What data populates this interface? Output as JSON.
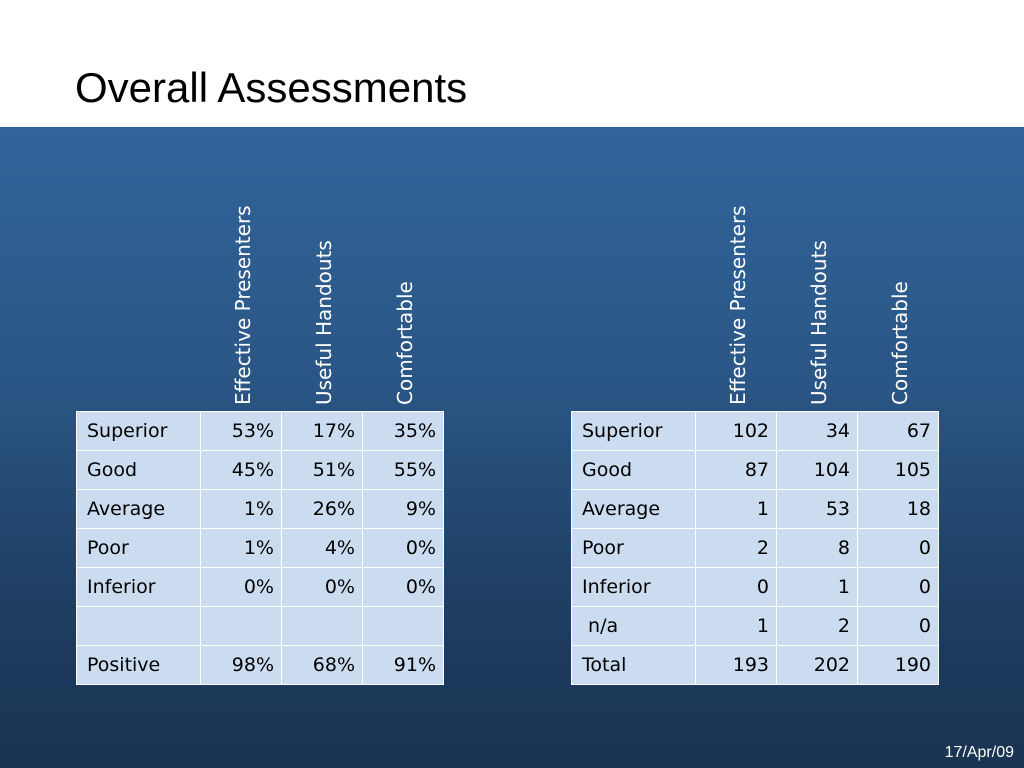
{
  "slide": {
    "title": "Overall Assessments",
    "date": "17/Apr/09"
  },
  "percent_table": {
    "columns": [
      "Effective Presenters",
      "Useful Handouts",
      "Comfortable"
    ],
    "rows": [
      {
        "label": "Superior",
        "values": [
          "53%",
          "17%",
          "35%"
        ]
      },
      {
        "label": "Good",
        "values": [
          "45%",
          "51%",
          "55%"
        ]
      },
      {
        "label": "Average",
        "values": [
          "1%",
          "26%",
          "9%"
        ]
      },
      {
        "label": "Poor",
        "values": [
          "1%",
          "4%",
          "0%"
        ]
      },
      {
        "label": "Inferior",
        "values": [
          "0%",
          "0%",
          "0%"
        ]
      },
      {
        "label": "",
        "values": [
          "",
          "",
          ""
        ]
      },
      {
        "label": "Positive",
        "values": [
          "98%",
          "68%",
          "91%"
        ]
      }
    ]
  },
  "count_table": {
    "columns": [
      "Effective Presenters",
      "Useful Handouts",
      "Comfortable"
    ],
    "rows": [
      {
        "label": "Superior",
        "values": [
          "102",
          "34",
          "67"
        ]
      },
      {
        "label": "Good",
        "values": [
          "87",
          "104",
          "105"
        ]
      },
      {
        "label": "Average",
        "values": [
          "1",
          "53",
          "18"
        ]
      },
      {
        "label": "Poor",
        "values": [
          "2",
          "8",
          "0"
        ]
      },
      {
        "label": "Inferior",
        "values": [
          "0",
          "1",
          "0"
        ]
      },
      {
        "label": " n/a",
        "values": [
          "1",
          "2",
          "0"
        ]
      },
      {
        "label": "Total",
        "values": [
          "193",
          "202",
          "190"
        ]
      }
    ]
  },
  "colors": {
    "panel_top": "#31649a",
    "panel_bottom": "#1a3352",
    "cell_fill": "#ccdcf0"
  }
}
